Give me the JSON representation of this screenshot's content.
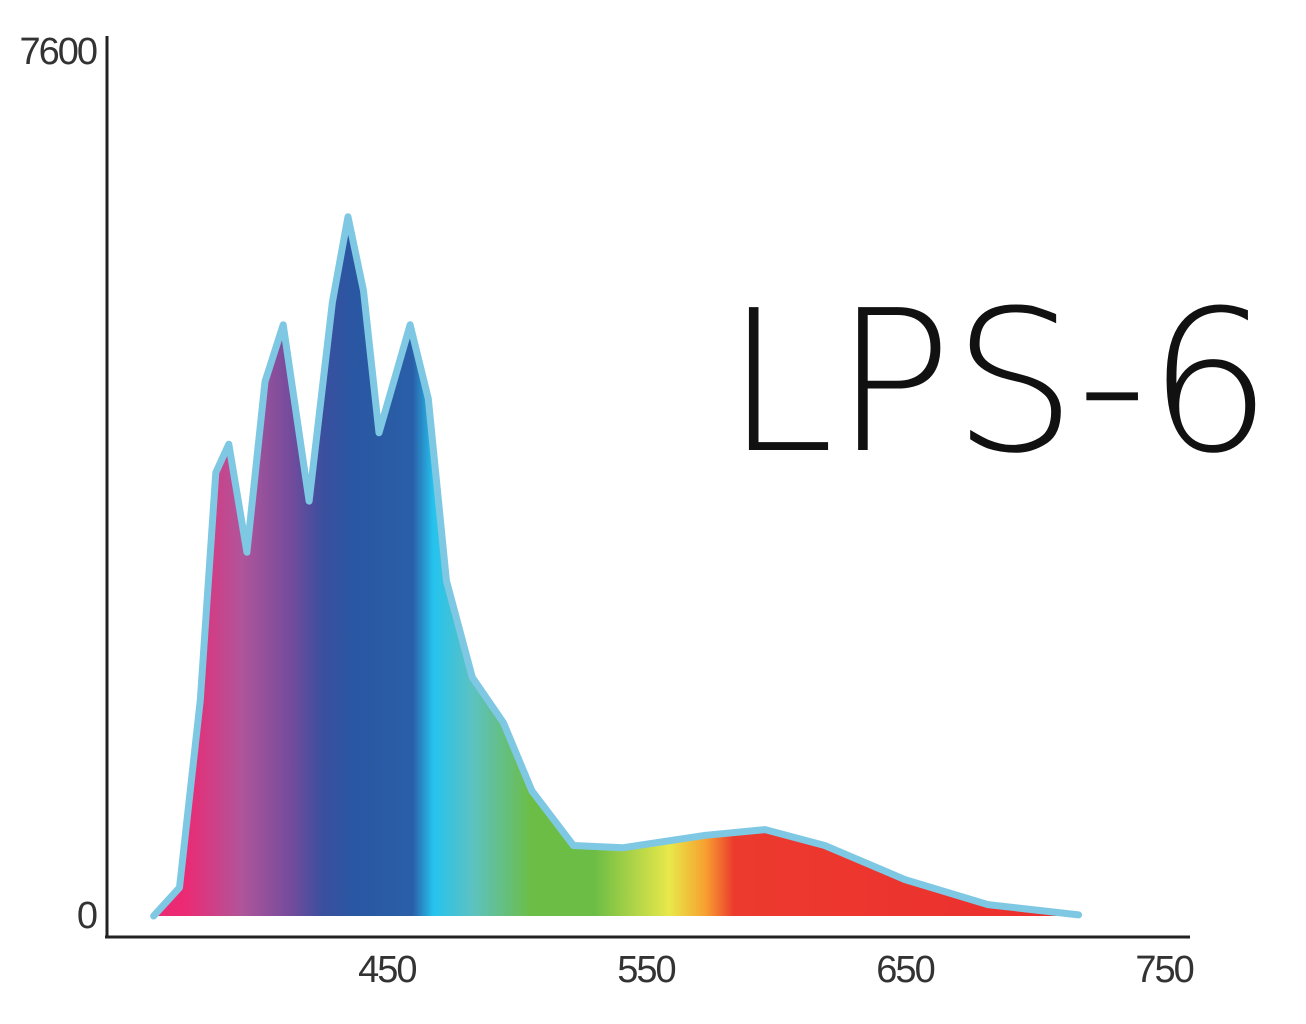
{
  "chart_data": {
    "type": "area",
    "title": "LPS-6",
    "x": [
      360,
      370,
      378,
      384,
      389,
      396,
      403,
      410,
      420,
      429,
      435,
      441,
      447,
      459,
      466,
      473,
      483,
      495,
      506,
      522,
      541,
      573,
      596,
      619,
      650,
      682,
      717
    ],
    "values": [
      0,
      250,
      1900,
      3900,
      4150,
      3200,
      4700,
      5200,
      3650,
      5400,
      6150,
      5500,
      4250,
      5200,
      4550,
      2950,
      2100,
      1700,
      1100,
      620,
      600,
      710,
      760,
      620,
      320,
      100,
      10
    ],
    "line_color": "#7ec8e3",
    "color_stops": [
      {
        "x": 372,
        "color": "#ec2a74"
      },
      {
        "x": 394,
        "color": "#b0559a"
      },
      {
        "x": 413,
        "color": "#744b9c"
      },
      {
        "x": 425,
        "color": "#3b4f9e"
      },
      {
        "x": 436,
        "color": "#2a56a2"
      },
      {
        "x": 460,
        "color": "#2a5fa8"
      },
      {
        "x": 468,
        "color": "#25c3ee"
      },
      {
        "x": 483,
        "color": "#5cc2c2"
      },
      {
        "x": 506,
        "color": "#6cbd45"
      },
      {
        "x": 530,
        "color": "#6cbd45"
      },
      {
        "x": 559,
        "color": "#e8e84a"
      },
      {
        "x": 573,
        "color": "#f7a030"
      },
      {
        "x": 584,
        "color": "#ec3a2e"
      },
      {
        "x": 717,
        "color": "#ec2e2e"
      }
    ],
    "xlim": [
      342,
      760
    ],
    "xticks": [
      450,
      550,
      650,
      750
    ],
    "ylim": [
      0,
      7600
    ],
    "yticks": [
      0,
      7600
    ]
  }
}
